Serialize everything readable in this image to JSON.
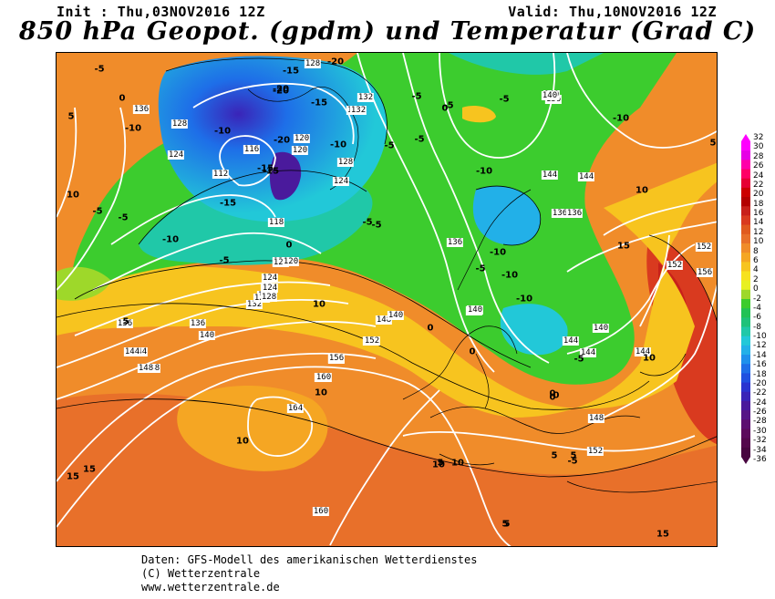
{
  "header": {
    "init": "Init : Thu,03NOV2016 12Z",
    "valid": "Valid: Thu,10NOV2016 12Z",
    "title": "850 hPa Geopot. (gpdm) und Temperatur (Grad C)"
  },
  "scale": {
    "labels": [
      "32",
      "30",
      "28",
      "26",
      "24",
      "22",
      "20",
      "18",
      "16",
      "14",
      "12",
      "10",
      "8",
      "6",
      "4",
      "2",
      "0",
      "-2",
      "-4",
      "-6",
      "-8",
      "-10",
      "-12",
      "-14",
      "-16",
      "-18",
      "-20",
      "-22",
      "-24",
      "-26",
      "-28",
      "-30",
      "-32",
      "-34",
      "-36"
    ],
    "colors": [
      "#ff00ff",
      "#e600e6",
      "#ff00aa",
      "#ff0066",
      "#e60033",
      "#cc0000",
      "#b30000",
      "#c8201a",
      "#d93a1f",
      "#e05a1f",
      "#e8702a",
      "#f08c2a",
      "#f5a623",
      "#f7c41f",
      "#f7e21f",
      "#e8f021",
      "#9ed82a",
      "#3ccc2e",
      "#22c255",
      "#1fc27a",
      "#20c8a8",
      "#22c8d8",
      "#22b0e8",
      "#1e90ec",
      "#1e6ee8",
      "#2050e0",
      "#2a34d0",
      "#3a24b8",
      "#4a1a9c",
      "#561486",
      "#5c0e70",
      "#5c0a5c",
      "#54084c",
      "#480640"
    ]
  },
  "map": {
    "isobar_labels": [
      "156",
      "148",
      "144",
      "140",
      "136",
      "132",
      "128",
      "124",
      "120",
      "116",
      "112",
      "124",
      "128",
      "132",
      "136",
      "140",
      "144",
      "152",
      "160",
      "164",
      "160",
      "152",
      "148",
      "144",
      "140",
      "136",
      "144",
      "140",
      "136",
      "136",
      "132",
      "128",
      "124",
      "120",
      "118",
      "120",
      "128",
      "132",
      "128",
      "124",
      "120",
      "140",
      "136",
      "144",
      "140",
      "152",
      "156",
      "152",
      "144",
      "148",
      "152",
      "160",
      "136",
      "128",
      "156",
      "148",
      "140",
      "144",
      "124",
      "120"
    ],
    "temp_labels": [
      "-5",
      "-10",
      "-15",
      "-20",
      "-5",
      "-10",
      "-15",
      "-20",
      "-5",
      "-10",
      "-5",
      "0",
      "-5",
      "-10",
      "-5",
      "0",
      "5",
      "10",
      "10",
      "5",
      "0",
      "-5",
      "-10",
      "-15",
      "-10",
      "-5",
      "0",
      "5",
      "10",
      "15",
      "10",
      "5",
      "10",
      "15",
      "15",
      "10",
      "5",
      "0",
      "-5",
      "-10",
      "-15",
      "-20",
      "-5",
      "0",
      "5",
      "-5",
      "-10",
      "-5",
      "0",
      "-5",
      "10",
      "15",
      "5",
      "-5",
      "0",
      "5",
      "10",
      "-10",
      "-20",
      "-15"
    ]
  },
  "credits": {
    "line1": "Daten: GFS-Modell des amerikanischen Wetterdienstes",
    "line2": "(C) Wetterzentrale",
    "line3": "www.wetterzentrale.de"
  },
  "legend_colors": {
    "warm": "#f08c2a",
    "hot": "#c8201a",
    "mild": "#f7e21f",
    "neutral": "#3ccc2e",
    "cool": "#22c8d8",
    "cold": "#1e6ee8",
    "frigid": "#4a1a9c"
  }
}
